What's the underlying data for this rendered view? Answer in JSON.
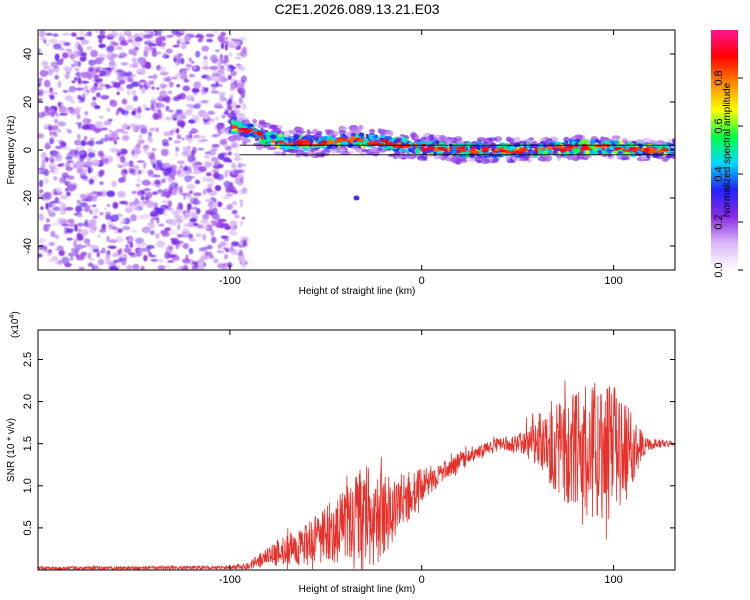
{
  "figure_title": "C2E1.2026.089.13.21.E03",
  "chart_data": [
    {
      "type": "heatmap",
      "title": "C2E1.2026.089.13.21.E03",
      "xlabel": "Height of straight line (km)",
      "ylabel": "Frequency (Hz)",
      "xlim": [
        -200,
        132
      ],
      "ylim": [
        -50,
        50
      ],
      "xticks": [
        -100,
        0,
        100
      ],
      "xtick_labels": [
        "-100",
        "0",
        "100"
      ],
      "yticks": [
        -40,
        -20,
        0,
        20,
        40
      ],
      "ytick_labels": [
        "-40",
        "-20",
        "0",
        "20",
        "40"
      ],
      "noise_region_x": [
        -200,
        -92
      ],
      "signal_start_x": -100,
      "ridge_center": [
        {
          "x": -100,
          "y": 10
        },
        {
          "x": -90,
          "y": 8
        },
        {
          "x": -80,
          "y": 5
        },
        {
          "x": -70,
          "y": 3
        },
        {
          "x": -60,
          "y": 3
        },
        {
          "x": -50,
          "y": 3
        },
        {
          "x": -40,
          "y": 4
        },
        {
          "x": -30,
          "y": 4
        },
        {
          "x": -20,
          "y": 3
        },
        {
          "x": -10,
          "y": 2
        },
        {
          "x": 0,
          "y": 1
        },
        {
          "x": 10,
          "y": 1
        },
        {
          "x": 20,
          "y": 0
        },
        {
          "x": 40,
          "y": 0
        },
        {
          "x": 60,
          "y": 0
        },
        {
          "x": 80,
          "y": 1
        },
        {
          "x": 100,
          "y": 1
        },
        {
          "x": 120,
          "y": 0
        },
        {
          "x": 132,
          "y": 0
        }
      ],
      "reference_line_y": [
        2,
        -2
      ],
      "isolated_blob": {
        "x": -34,
        "y": -20
      },
      "colorbar": {
        "label": "Normalized spectral amplitude",
        "range": [
          0,
          1
        ],
        "ticks": [
          0.0,
          0.2,
          0.4,
          0.6,
          0.8
        ],
        "tick_labels": [
          "0.0",
          "0.2",
          "0.4",
          "0.6",
          "0.8"
        ],
        "colors": [
          "#ffffff",
          "#d9b8f8",
          "#8a2be2",
          "#2222ff",
          "#00d8ff",
          "#00ff44",
          "#ffff00",
          "#ff8800",
          "#ff0000",
          "#ff1493"
        ]
      }
    },
    {
      "type": "line",
      "xlabel": "Height of straight line (km)",
      "ylabel": "SNR (10 * v/v)",
      "y_multiplier": "(x10",
      "y_multiplier_exp": "4",
      "y_multiplier_close": ")",
      "xlim": [
        -200,
        132
      ],
      "ylim": [
        0,
        2.85
      ],
      "xticks": [
        -100,
        0,
        100
      ],
      "xtick_labels": [
        "-100",
        "0",
        "100"
      ],
      "yticks": [
        0.5,
        1.0,
        1.5,
        2.0,
        2.5
      ],
      "ytick_labels": [
        "0.5",
        "1.0",
        "1.5",
        "2.0",
        "2.5"
      ],
      "color": "#e8302a",
      "envelope": [
        {
          "x": -200,
          "base": 0.02,
          "amp": 0.02
        },
        {
          "x": -100,
          "base": 0.03,
          "amp": 0.02
        },
        {
          "x": -90,
          "base": 0.06,
          "amp": 0.05
        },
        {
          "x": -80,
          "base": 0.15,
          "amp": 0.12
        },
        {
          "x": -70,
          "base": 0.25,
          "amp": 0.18
        },
        {
          "x": -60,
          "base": 0.3,
          "amp": 0.25
        },
        {
          "x": -50,
          "base": 0.4,
          "amp": 0.35
        },
        {
          "x": -40,
          "base": 0.55,
          "amp": 0.45
        },
        {
          "x": -30,
          "base": 0.6,
          "amp": 0.65
        },
        {
          "x": -20,
          "base": 0.65,
          "amp": 0.5
        },
        {
          "x": -10,
          "base": 0.8,
          "amp": 0.35
        },
        {
          "x": 0,
          "base": 1.0,
          "amp": 0.2
        },
        {
          "x": 10,
          "base": 1.15,
          "amp": 0.12
        },
        {
          "x": 20,
          "base": 1.3,
          "amp": 0.1
        },
        {
          "x": 30,
          "base": 1.4,
          "amp": 0.08
        },
        {
          "x": 40,
          "base": 1.5,
          "amp": 0.07
        },
        {
          "x": 50,
          "base": 1.5,
          "amp": 0.1
        },
        {
          "x": 60,
          "base": 1.55,
          "amp": 0.3
        },
        {
          "x": 70,
          "base": 1.5,
          "amp": 0.6
        },
        {
          "x": 80,
          "base": 1.4,
          "amp": 0.7
        },
        {
          "x": 90,
          "base": 1.45,
          "amp": 0.85
        },
        {
          "x": 100,
          "base": 1.4,
          "amp": 0.8
        },
        {
          "x": 110,
          "base": 1.45,
          "amp": 0.4
        },
        {
          "x": 118,
          "base": 1.5,
          "amp": 0.08
        },
        {
          "x": 132,
          "base": 1.5,
          "amp": 0.02
        }
      ]
    }
  ]
}
